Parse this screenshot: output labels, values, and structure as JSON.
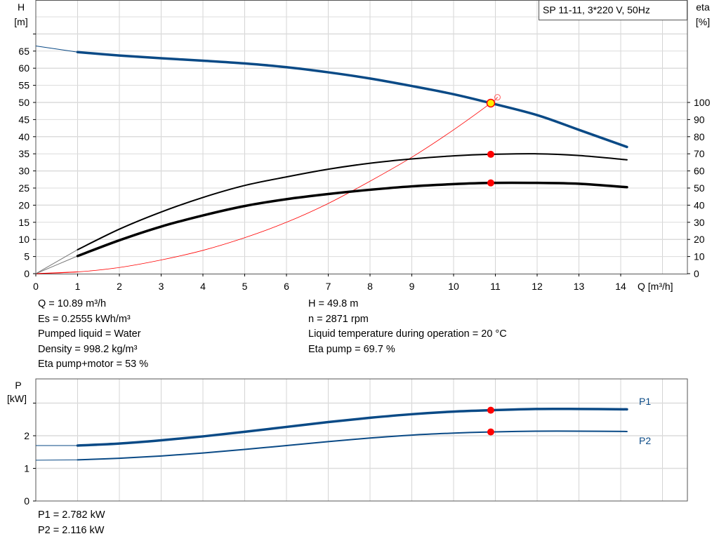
{
  "chart_data": [
    {
      "type": "line",
      "title": "SP 11-11, 3*220 V, 50Hz",
      "xlabel": "Q [m³/h]",
      "ylabel": "H\n[m]",
      "y2label": "eta\n[%]",
      "xlim": [
        0,
        15.6
      ],
      "ylim": [
        0,
        80
      ],
      "y2lim": [
        0,
        160
      ],
      "xticks": [
        0,
        1,
        2,
        3,
        4,
        5,
        6,
        7,
        8,
        9,
        10,
        11,
        12,
        13,
        14
      ],
      "yticks": [
        0,
        5,
        10,
        15,
        20,
        25,
        30,
        35,
        40,
        45,
        50,
        55,
        60,
        65
      ],
      "y2ticks": [
        0,
        10,
        20,
        30,
        40,
        50,
        60,
        70,
        80,
        90,
        100
      ],
      "grid": true,
      "series": [
        {
          "axis": "H",
          "color": "#0a4a86",
          "x": [
            0,
            1,
            2,
            3,
            4,
            5,
            6,
            7,
            8,
            9,
            10,
            10.89,
            12,
            13,
            14.15
          ],
          "values": [
            66.5,
            64.7,
            63.7,
            62.9,
            62.2,
            61.4,
            60.3,
            58.8,
            57.0,
            54.8,
            52.4,
            49.8,
            46.3,
            42.0,
            37.0
          ]
        },
        {
          "axis": "eta",
          "color": "#000000",
          "x": [
            0,
            1,
            2,
            3,
            4,
            5,
            6,
            7,
            8,
            9,
            10,
            10.89,
            12,
            13,
            14.15
          ],
          "values": [
            0,
            14,
            26,
            36,
            44.5,
            51.5,
            56.5,
            61,
            64.5,
            67,
            68.8,
            69.7,
            70,
            69,
            66.5
          ]
        },
        {
          "axis": "eta",
          "color": "#000000",
          "x": [
            0,
            1,
            2,
            3,
            4,
            5,
            6,
            7,
            8,
            9,
            10,
            10.89,
            12,
            13,
            14.15
          ],
          "values": [
            0,
            10.3,
            19.5,
            27.5,
            34,
            39.5,
            43.5,
            46.5,
            49,
            51,
            52.3,
            53,
            53,
            52.5,
            50.5
          ]
        },
        {
          "axis": "H",
          "color": "#ff0000",
          "x": [
            0,
            1,
            2,
            3,
            4,
            5,
            6,
            7,
            8,
            9,
            10,
            10.89,
            11.05
          ],
          "values": [
            0,
            0.5,
            1.8,
            4,
            6.8,
            10.5,
            15,
            20.5,
            27,
            34,
            42,
            49.8,
            51.5
          ]
        }
      ],
      "duty_point": {
        "Q": 10.89,
        "H": 49.8,
        "eta_pump": 69.7,
        "eta_total": 53
      }
    },
    {
      "type": "line",
      "ylabel": "P\n[kW]",
      "xlim": [
        0,
        15.6
      ],
      "ylim": [
        0,
        3.4
      ],
      "yticks": [
        "0",
        "1",
        "2",
        ""
      ],
      "grid": true,
      "series": [
        {
          "name": "P1",
          "color": "#0a4a86",
          "x": [
            0,
            1,
            2,
            3,
            4,
            5,
            6,
            7,
            8,
            9,
            10,
            10.89,
            12,
            13,
            14.15
          ],
          "values": [
            1.7,
            1.7,
            1.76,
            1.86,
            1.98,
            2.12,
            2.27,
            2.42,
            2.55,
            2.66,
            2.74,
            2.782,
            2.82,
            2.82,
            2.81
          ]
        },
        {
          "name": "P2",
          "color": "#0a4a86",
          "x": [
            0,
            1,
            2,
            3,
            4,
            5,
            6,
            7,
            8,
            9,
            10,
            10.89,
            12,
            13,
            14.15
          ],
          "values": [
            1.25,
            1.26,
            1.31,
            1.38,
            1.47,
            1.58,
            1.7,
            1.82,
            1.93,
            2.02,
            2.08,
            2.116,
            2.14,
            2.14,
            2.13
          ]
        }
      ],
      "duty_point": {
        "Q": 10.89,
        "P1": 2.782,
        "P2": 2.116
      }
    }
  ],
  "info_left": [
    "Q = 10.89 m³/h",
    "Es = 0.2555 kWh/m³",
    "Pumped liquid = Water",
    "Density = 998.2 kg/m³",
    "Eta pump+motor = 53 %"
  ],
  "info_right": [
    "H = 49.8 m",
    "n = 2871 rpm",
    "Liquid temperature during operation = 20 °C",
    "Eta pump = 69.7 %"
  ],
  "info_power": [
    "P1 = 2.782 kW",
    "P2 = 2.116 kW"
  ]
}
